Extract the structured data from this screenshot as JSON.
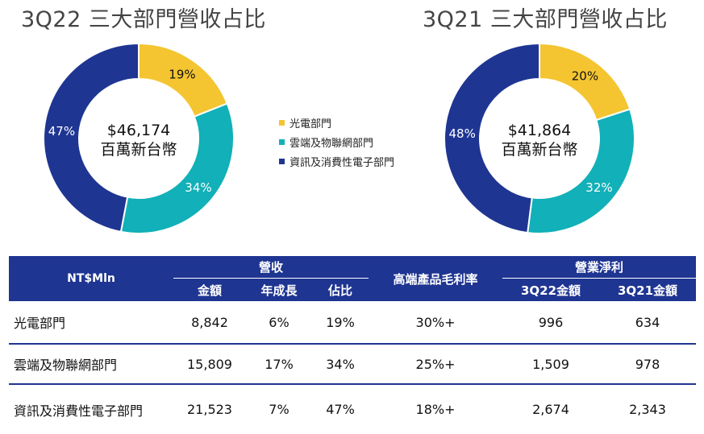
{
  "chart_data": [
    {
      "type": "pie",
      "title": "3Q22 三大部門營收占比",
      "center_text": [
        "$46,174",
        "百萬新台幣"
      ],
      "categories": [
        "光電部門",
        "雲端及物聯網部門",
        "資訊及消費性電子部門"
      ],
      "values": [
        19,
        34,
        47
      ],
      "labels": [
        "19%",
        "34%",
        "47%"
      ],
      "colors": [
        "#f4c531",
        "#12b0b8",
        "#1f3592"
      ]
    },
    {
      "type": "pie",
      "title": "3Q21 三大部門營收占比",
      "center_text": [
        "$41,864",
        "百萬新台幣"
      ],
      "categories": [
        "光電部門",
        "雲端及物聯網部門",
        "資訊及消費性電子部門"
      ],
      "values": [
        20,
        32,
        48
      ],
      "labels": [
        "20%",
        "32%",
        "48%"
      ],
      "colors": [
        "#f4c531",
        "#12b0b8",
        "#1f3592"
      ]
    }
  ],
  "legend": [
    {
      "label": "光電部門",
      "color": "#f4c531"
    },
    {
      "label": "雲端及物聯網部門",
      "color": "#12b0b8"
    },
    {
      "label": "資訊及消費性電子部門",
      "color": "#1f3592"
    }
  ],
  "table": {
    "row_header": "NT$Mln",
    "group_revenue": "營收",
    "group_margin": "高端產品毛利率",
    "group_profit": "營業淨利",
    "sub_headers": [
      "金額",
      "年成長",
      "佔比",
      "3Q22金額",
      "3Q21金額"
    ],
    "rows": [
      {
        "label": "光電部門",
        "amount": "8,842",
        "growth": "6%",
        "share": "19%",
        "margin": "30%+",
        "p22": "996",
        "p21": "634"
      },
      {
        "label": "雲端及物聯網部門",
        "amount": "15,809",
        "growth": "17%",
        "share": "34%",
        "margin": "25%+",
        "p22": "1,509",
        "p21": "978"
      },
      {
        "label": "資訊及消費性電子部門",
        "amount": "21,523",
        "growth": "7%",
        "share": "47%",
        "margin": "18%+",
        "p22": "2,674",
        "p21": "2,343"
      }
    ]
  }
}
